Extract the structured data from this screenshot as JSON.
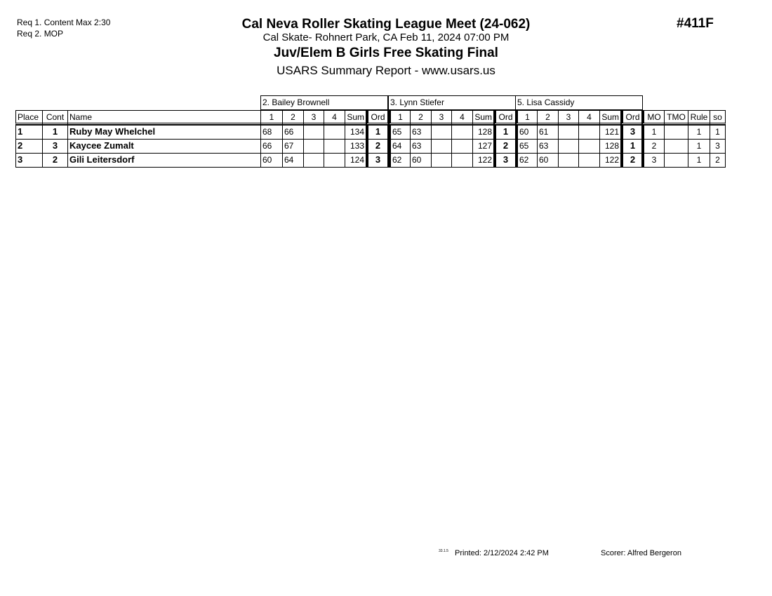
{
  "requirements": [
    "Req  1.  Content Max 2:30",
    "Req  2.  MOP"
  ],
  "header": {
    "title": "Cal Neva Roller Skating League Meet (24-062)",
    "event_number": "#411F",
    "location": "Cal Skate- Rohnert Park, CA  Feb 11, 2024  07:00 PM",
    "event_name": "Juv/Elem B Girls Free Skating Final",
    "report": "USARS Summary Report - www.usars.us"
  },
  "table": {
    "judges": [
      "2.  Bailey Brownell",
      "3.  Lynn Stiefer",
      "5.  Lisa Cassidy"
    ],
    "columns": {
      "place": "Place",
      "cont": "Cont",
      "name": "Name",
      "scores": [
        "1",
        "2",
        "3",
        "4",
        "Sum",
        "Ord"
      ],
      "mo": "MO",
      "tmo": "TMO",
      "rule": "Rule",
      "so": "so"
    },
    "rows": [
      {
        "place": "1",
        "cont": "1",
        "name": "Ruby May Whelchel",
        "judges": [
          [
            "68",
            "66",
            "",
            "",
            "134",
            "1"
          ],
          [
            "65",
            "63",
            "",
            "",
            "128",
            "1"
          ],
          [
            "60",
            "61",
            "",
            "",
            "121",
            "3"
          ]
        ],
        "mo": "1",
        "tmo": "",
        "rule": "1",
        "so": "1"
      },
      {
        "place": "2",
        "cont": "3",
        "name": "Kaycee Zumalt",
        "judges": [
          [
            "66",
            "67",
            "",
            "",
            "133",
            "2"
          ],
          [
            "64",
            "63",
            "",
            "",
            "127",
            "2"
          ],
          [
            "65",
            "63",
            "",
            "",
            "128",
            "1"
          ]
        ],
        "mo": "2",
        "tmo": "",
        "rule": "1",
        "so": "3"
      },
      {
        "place": "3",
        "cont": "2",
        "name": "Gili Leitersdorf",
        "judges": [
          [
            "60",
            "64",
            "",
            "",
            "124",
            "3"
          ],
          [
            "62",
            "60",
            "",
            "",
            "122",
            "3"
          ],
          [
            "62",
            "60",
            "",
            "",
            "122",
            "2"
          ]
        ],
        "mo": "3",
        "tmo": "",
        "rule": "1",
        "so": "2"
      }
    ]
  },
  "footer": {
    "version": "33.1.5",
    "printed": "Printed:  2/12/2024  2:42 PM",
    "scorer": "Scorer:   Alfred Bergeron"
  }
}
